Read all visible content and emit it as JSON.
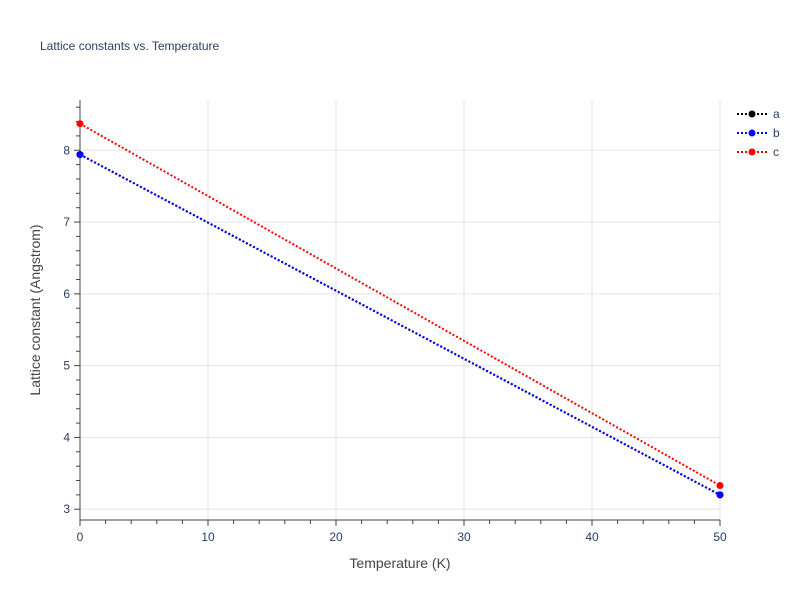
{
  "chart_data": {
    "type": "line",
    "title": "Lattice constants vs. Temperature",
    "xlabel": "Temperature (K)",
    "ylabel": "Lattice constant (Angstrom)",
    "xlim": [
      0,
      50
    ],
    "ylim": [
      2.85,
      8.7
    ],
    "x_ticks": [
      0,
      10,
      20,
      30,
      40,
      50
    ],
    "y_ticks": [
      3,
      4,
      5,
      6,
      7,
      8
    ],
    "grid": true,
    "legend_position": "top-right",
    "line_style": "dotted",
    "series": [
      {
        "name": "a",
        "color": "#000000",
        "x": [
          0,
          50
        ],
        "y": [
          7.94,
          3.2
        ]
      },
      {
        "name": "b",
        "color": "#0000ff",
        "x": [
          0,
          50
        ],
        "y": [
          7.94,
          3.2
        ]
      },
      {
        "name": "c",
        "color": "#ff0000",
        "x": [
          0,
          50
        ],
        "y": [
          8.37,
          3.33
        ]
      }
    ]
  }
}
